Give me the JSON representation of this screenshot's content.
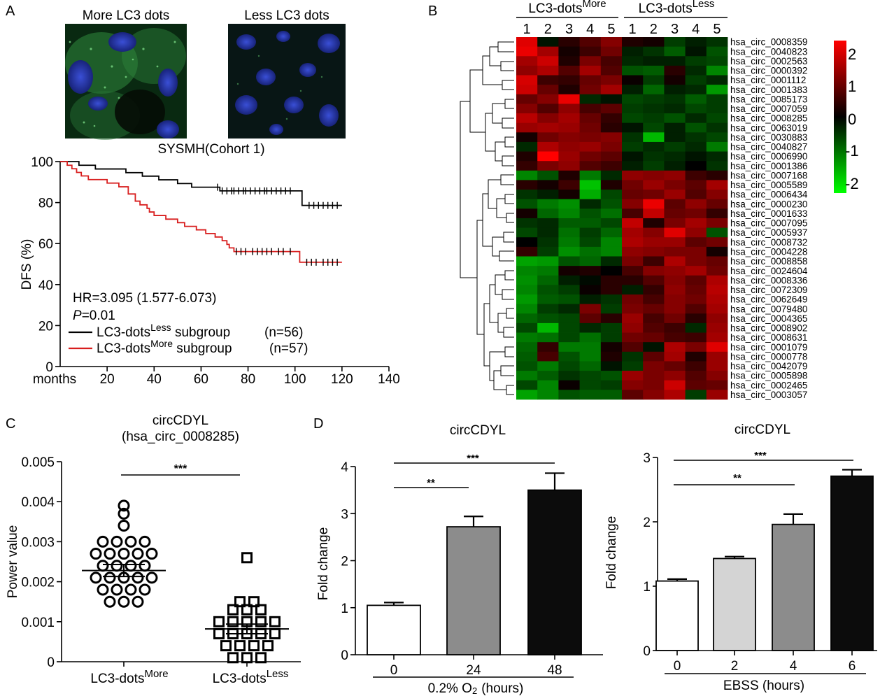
{
  "panel_labels": {
    "a": "A",
    "b": "B",
    "c": "C",
    "d": "D"
  },
  "colors": {
    "surv_less": "#000000",
    "surv_more": "#d81e1e",
    "heat_high": "#ff0000",
    "heat_mid": "#000000",
    "heat_low": "#00ff00",
    "bar_white": "#ffffff",
    "bar_lightgray": "#d4d4d4",
    "bar_gray": "#8c8c8c",
    "bar_black": "#0c0c0c"
  },
  "panel_a": {
    "img_more_label": "More LC3 dots",
    "img_less_label": "Less LC3 dots",
    "cohort_label": "SYSMH(Cohort 1)",
    "hr_text": "HR=3.095 (1.577-6.073)",
    "p_label": "P",
    "p_value": "=0.01",
    "legend": [
      {
        "prefix": "LC3-dots",
        "sup": "Less",
        "suffix": " subgroup",
        "n": "(n=56)",
        "color_key": "surv_less"
      },
      {
        "prefix": "LC3-dots",
        "sup": "More",
        "suffix": " subgroup",
        "n": "(n=57)",
        "color_key": "surv_more"
      }
    ]
  },
  "panel_b": {
    "group_more": {
      "prefix": "LC3-dots",
      "sup": "More"
    },
    "group_less": {
      "prefix": "LC3-dots",
      "sup": "Less"
    },
    "colorbar_ticks": [
      "2",
      "1",
      "0",
      "-1",
      "-2"
    ]
  },
  "panel_c": {
    "title_line1": "circCDYL",
    "title_line2": "(hsa_circ_0008285)",
    "significance": "***",
    "cat_more": {
      "prefix": "LC3-dots",
      "sup": "More"
    },
    "cat_less": {
      "prefix": "LC3-dots",
      "sup": "Less"
    }
  },
  "panel_d": {
    "left_sig_short": "**",
    "left_sig_long": "***",
    "left_xlabel_prefix": "0.2% O",
    "left_xlabel_sub": "2",
    "left_xlabel_suffix": "(hours)",
    "right_sig_short": "**",
    "right_sig_long": "***"
  },
  "chart_data": [
    {
      "id": "survival",
      "type": "line",
      "title": "SYSMH(Cohort 1)",
      "xlabel": "months",
      "ylabel": "DFS (%)",
      "xlim": [
        0,
        140
      ],
      "ylim": [
        0,
        100
      ],
      "xticks": [
        "20",
        "40",
        "60",
        "80",
        "100",
        "120",
        "140"
      ],
      "yticks": [
        "0",
        "20",
        "40",
        "60",
        "80",
        "100"
      ],
      "series": [
        {
          "name": "LC3-dots Less subgroup (n=56)",
          "color_key": "surv_less",
          "steps": [
            [
              0,
              100
            ],
            [
              8,
              98.2
            ],
            [
              15,
              96.4
            ],
            [
              28,
              94.6
            ],
            [
              35,
              92.9
            ],
            [
              42,
              91.1
            ],
            [
              50,
              89.3
            ],
            [
              56,
              87.5
            ],
            [
              68,
              85.7
            ],
            [
              100,
              85.7
            ],
            [
              103,
              78.6
            ],
            [
              120,
              78.6
            ]
          ],
          "censor_x": [
            67,
            69,
            71,
            73,
            74,
            76,
            78,
            79,
            81,
            83,
            85,
            87,
            88,
            90,
            92,
            94,
            96,
            98,
            106,
            108,
            110,
            112,
            114,
            116,
            118
          ]
        },
        {
          "name": "LC3-dots More subgroup (n=57)",
          "color_key": "surv_more",
          "steps": [
            [
              0,
              100
            ],
            [
              3,
              98.2
            ],
            [
              5,
              96.5
            ],
            [
              7,
              94.7
            ],
            [
              9,
              93
            ],
            [
              12,
              91.2
            ],
            [
              20,
              89.5
            ],
            [
              25,
              87.7
            ],
            [
              29,
              84.2
            ],
            [
              32,
              80.7
            ],
            [
              34,
              78.9
            ],
            [
              37,
              77.2
            ],
            [
              38,
              75.4
            ],
            [
              40,
              73.7
            ],
            [
              45,
              71.9
            ],
            [
              50,
              70.2
            ],
            [
              53,
              68.4
            ],
            [
              58,
              66.7
            ],
            [
              62,
              64.9
            ],
            [
              66,
              63.2
            ],
            [
              69,
              61.4
            ],
            [
              71,
              59.6
            ],
            [
              72,
              57.9
            ],
            [
              74,
              56.1
            ],
            [
              100,
              56.1
            ],
            [
              102,
              50.9
            ],
            [
              120,
              50.9
            ]
          ],
          "censor_x": [
            75,
            77,
            79,
            82,
            84,
            86,
            88,
            90,
            93,
            95,
            98,
            105,
            107,
            109,
            112,
            114,
            116,
            118
          ]
        }
      ]
    },
    {
      "id": "heatmap",
      "type": "heatmap",
      "columns": [
        "1",
        "2",
        "3",
        "4",
        "5",
        "1",
        "2",
        "3",
        "4",
        "5"
      ],
      "rows": [
        "hsa_circ_0008359",
        "hsa_circ_0040823",
        "hsa_circ_0002563",
        "hsa_circ_0000392",
        "hsa_circ_0001112",
        "hsa_circ_0001383",
        "hsa_circ_0085173",
        "hsa_circ_0007059",
        "hsa_circ_0008285",
        "hsa_circ_0063019",
        "hsa_circ_0030883",
        "hsa_circ_0040827",
        "hsa_circ_0006990",
        "hsa_circ_0001386",
        "hsa_circ_0007168",
        "hsa_circ_0005589",
        "hsa_circ_0006434",
        "hsa_circ_0000230",
        "hsa_circ_0001633",
        "hsa_circ_0007095",
        "hsa_circ_0005937",
        "hsa_circ_0008732",
        "hsa_circ_0004228",
        "hsa_circ_0008858",
        "hsa_circ_0024604",
        "hsa_circ_0008336",
        "hsa_circ_0072309",
        "hsa_circ_0062649",
        "hsa_circ_0079480",
        "hsa_circ_0004365",
        "hsa_circ_0008902",
        "hsa_circ_0008631",
        "hsa_circ_0001079",
        "hsa_circ_0000778",
        "hsa_circ_0042079",
        "hsa_circ_0005898",
        "hsa_circ_0002465",
        "hsa_circ_0003057"
      ],
      "values": [
        [
          2.2,
          -0.2,
          0.4,
          0.8,
          1.3,
          0.3,
          0.2,
          -0.6,
          -0.3,
          -0.5
        ],
        [
          2.3,
          1.6,
          0.2,
          0.6,
          1.1,
          -0.3,
          -0.5,
          -0.9,
          -0.2,
          -0.8
        ],
        [
          1.6,
          2.0,
          0.3,
          1.2,
          0.7,
          -0.4,
          -0.3,
          -0.3,
          -0.6,
          -0.7
        ],
        [
          1.4,
          1.7,
          0.8,
          1.6,
          0.8,
          -0.8,
          -0.9,
          0.4,
          -0.4,
          -1.3
        ],
        [
          2.1,
          0.6,
          0.5,
          1.0,
          1.2,
          0.1,
          -0.6,
          0.2,
          -0.6,
          -0.4
        ],
        [
          2.0,
          1.0,
          0.3,
          1.1,
          1.6,
          -0.3,
          -1.0,
          -0.3,
          -0.4,
          -1.5
        ],
        [
          1.0,
          1.3,
          2.3,
          -0.4,
          -0.2,
          -0.7,
          -0.6,
          -0.5,
          -0.9,
          -0.6
        ],
        [
          1.3,
          0.8,
          1.4,
          0.7,
          0.9,
          -0.6,
          -0.5,
          -0.4,
          -0.7,
          -0.6
        ],
        [
          1.8,
          1.3,
          1.6,
          1.0,
          0.5,
          -0.7,
          -0.6,
          -0.8,
          -0.4,
          -0.7
        ],
        [
          1.5,
          1.6,
          1.5,
          1.1,
          0.4,
          -0.2,
          -0.7,
          -0.3,
          -0.8,
          -0.5
        ],
        [
          0.2,
          1.1,
          1.3,
          1.2,
          1.3,
          -0.5,
          -1.8,
          -0.3,
          -0.5,
          -0.7
        ],
        [
          -0.4,
          1.7,
          1.4,
          1.5,
          1.2,
          -0.6,
          -0.4,
          -0.6,
          -0.4,
          -1.2
        ],
        [
          0.3,
          2.5,
          1.5,
          1.1,
          0.9,
          -0.2,
          -0.5,
          -0.4,
          -0.2,
          -0.4
        ],
        [
          0.5,
          1.2,
          1.4,
          0.8,
          0.6,
          -0.3,
          -0.6,
          -0.3,
          0.0,
          -0.5
        ],
        [
          -1.3,
          -0.8,
          0.3,
          -1.2,
          -0.4,
          1.4,
          1.3,
          1.4,
          0.6,
          0.4
        ],
        [
          0.4,
          0.2,
          0.6,
          -1.9,
          0.3,
          1.1,
          1.5,
          1.2,
          0.9,
          1.6
        ],
        [
          -0.5,
          -0.3,
          0.2,
          -1.7,
          -0.7,
          1.0,
          1.1,
          1.5,
          0.8,
          1.3
        ],
        [
          -0.8,
          -1.2,
          -1.4,
          -0.4,
          -0.8,
          1.3,
          2.3,
          0.9,
          1.4,
          1.0
        ],
        [
          0.2,
          -1.0,
          -1.3,
          -0.8,
          -1.1,
          0.7,
          1.9,
          1.0,
          1.1,
          0.5
        ],
        [
          -0.5,
          -0.4,
          -0.9,
          -0.9,
          -0.7,
          1.9,
          0.3,
          1.2,
          1.6,
          1.2
        ],
        [
          -0.7,
          -0.4,
          -1.1,
          -0.6,
          -1.0,
          1.6,
          1.3,
          2.2,
          1.4,
          -0.8
        ],
        [
          0.0,
          -0.5,
          -1.2,
          -0.7,
          -1.3,
          1.7,
          1.5,
          1.5,
          0.9,
          1.1
        ],
        [
          0.5,
          -0.6,
          -1.4,
          -1.1,
          -1.3,
          1.4,
          1.3,
          1.2,
          1.2,
          0.2
        ],
        [
          -1.6,
          -1.5,
          -0.8,
          -1.0,
          -0.4,
          1.2,
          0.6,
          1.7,
          1.2,
          1.0
        ],
        [
          -1.3,
          -1.2,
          0.2,
          0.3,
          0.0,
          0.7,
          1.3,
          1.4,
          1.6,
          1.1
        ],
        [
          -1.4,
          -1.0,
          -0.3,
          -0.1,
          0.4,
          0.4,
          0.8,
          1.3,
          0.9,
          1.7
        ],
        [
          -1.3,
          -0.8,
          -0.6,
          0.1,
          0.4,
          -0.3,
          0.5,
          1.4,
          1.0,
          1.8
        ],
        [
          -1.5,
          -0.9,
          -0.8,
          -0.3,
          -0.5,
          1.1,
          0.7,
          1.3,
          1.1,
          1.7
        ],
        [
          -1.3,
          -0.6,
          -0.4,
          1.2,
          -0.6,
          1.2,
          1.0,
          1.3,
          0.8,
          1.6
        ],
        [
          -1.0,
          -0.8,
          -0.7,
          0.9,
          0.4,
          1.5,
          0.7,
          1.1,
          0.4,
          1.4
        ],
        [
          -0.7,
          -1.8,
          -0.7,
          -0.4,
          -0.6,
          1.4,
          0.8,
          0.6,
          -0.4,
          1.5
        ],
        [
          -1.2,
          -1.1,
          -0.7,
          -1.1,
          -0.6,
          1.1,
          1.0,
          0.7,
          0.6,
          1.6
        ],
        [
          -1.0,
          0.5,
          -1.2,
          -1.2,
          0.2,
          0.8,
          -0.2,
          1.7,
          1.2,
          2.2
        ],
        [
          -0.9,
          0.7,
          -0.8,
          -1.2,
          0.3,
          -0.5,
          0.9,
          1.6,
          0.3,
          1.5
        ],
        [
          -0.8,
          -1.2,
          -0.7,
          -1.0,
          -0.2,
          -0.6,
          1.2,
          1.0,
          0.6,
          1.5
        ],
        [
          -1.2,
          -0.9,
          -0.5,
          -0.7,
          -0.8,
          1.5,
          1.2,
          1.4,
          0.8,
          1.3
        ],
        [
          -0.7,
          -1.3,
          0.1,
          -0.7,
          -0.6,
          1.3,
          1.2,
          2.0,
          0.9,
          1.0
        ],
        [
          -1.6,
          -1.3,
          -0.8,
          -0.9,
          -0.9,
          0.9,
          1.3,
          1.7,
          -0.6,
          1.5
        ]
      ],
      "range": [
        -2.5,
        2.5
      ]
    },
    {
      "id": "scatter",
      "type": "scatter",
      "ylabel": "Power value",
      "ylim": [
        0,
        0.005
      ],
      "yticks": [
        "0",
        "0.001",
        "0.002",
        "0.003",
        "0.004",
        "0.005"
      ],
      "categories": [
        "LC3-dotsMore",
        "LC3-dotsLess"
      ],
      "mean": [
        0.00228,
        0.00082
      ],
      "sem": [
        0.00015,
        0.00012
      ],
      "points": [
        {
          "group": 0,
          "dx": 0,
          "y": 0.0039
        },
        {
          "group": 0,
          "dx": 0,
          "y": 0.0034
        },
        {
          "group": 0,
          "dx": 0,
          "y": 0.0037
        },
        {
          "group": 0,
          "dx": -1.5,
          "y": 0.003
        },
        {
          "group": 0,
          "dx": -0.5,
          "y": 0.003
        },
        {
          "group": 0,
          "dx": 0.5,
          "y": 0.003
        },
        {
          "group": 0,
          "dx": 1.5,
          "y": 0.003
        },
        {
          "group": 0,
          "dx": -2,
          "y": 0.0027
        },
        {
          "group": 0,
          "dx": -1,
          "y": 0.0027
        },
        {
          "group": 0,
          "dx": 0,
          "y": 0.0027
        },
        {
          "group": 0,
          "dx": 1,
          "y": 0.0027
        },
        {
          "group": 0,
          "dx": 2,
          "y": 0.0027
        },
        {
          "group": 0,
          "dx": -1.5,
          "y": 0.0024
        },
        {
          "group": 0,
          "dx": -0.5,
          "y": 0.0024
        },
        {
          "group": 0,
          "dx": 0.5,
          "y": 0.0024
        },
        {
          "group": 0,
          "dx": 1.5,
          "y": 0.0024
        },
        {
          "group": 0,
          "dx": -2,
          "y": 0.0021
        },
        {
          "group": 0,
          "dx": -1,
          "y": 0.0021
        },
        {
          "group": 0,
          "dx": 0,
          "y": 0.0021
        },
        {
          "group": 0,
          "dx": 1,
          "y": 0.0021
        },
        {
          "group": 0,
          "dx": 2,
          "y": 0.0021
        },
        {
          "group": 0,
          "dx": -1.5,
          "y": 0.0018
        },
        {
          "group": 0,
          "dx": -0.5,
          "y": 0.0018
        },
        {
          "group": 0,
          "dx": 0.5,
          "y": 0.0018
        },
        {
          "group": 0,
          "dx": 1.5,
          "y": 0.0018
        },
        {
          "group": 0,
          "dx": -1,
          "y": 0.0015
        },
        {
          "group": 0,
          "dx": 0,
          "y": 0.0015
        },
        {
          "group": 0,
          "dx": 1,
          "y": 0.0015
        },
        {
          "group": 1,
          "dx": 0,
          "y": 0.0026
        },
        {
          "group": 1,
          "dx": -0.5,
          "y": 0.0015
        },
        {
          "group": 1,
          "dx": 0.5,
          "y": 0.0015
        },
        {
          "group": 1,
          "dx": -1,
          "y": 0.0013
        },
        {
          "group": 1,
          "dx": 0,
          "y": 0.0013
        },
        {
          "group": 1,
          "dx": 1,
          "y": 0.0013
        },
        {
          "group": 1,
          "dx": -2,
          "y": 0.001
        },
        {
          "group": 1,
          "dx": -1,
          "y": 0.001
        },
        {
          "group": 1,
          "dx": 0,
          "y": 0.001
        },
        {
          "group": 1,
          "dx": 1,
          "y": 0.001
        },
        {
          "group": 1,
          "dx": 2,
          "y": 0.001
        },
        {
          "group": 1,
          "dx": -2,
          "y": 0.0007
        },
        {
          "group": 1,
          "dx": -1,
          "y": 0.0007
        },
        {
          "group": 1,
          "dx": 0,
          "y": 0.0007
        },
        {
          "group": 1,
          "dx": 1,
          "y": 0.0007
        },
        {
          "group": 1,
          "dx": 2,
          "y": 0.0007
        },
        {
          "group": 1,
          "dx": -1.5,
          "y": 0.0004
        },
        {
          "group": 1,
          "dx": -0.5,
          "y": 0.0004
        },
        {
          "group": 1,
          "dx": 0.5,
          "y": 0.0004
        },
        {
          "group": 1,
          "dx": 1.5,
          "y": 0.0004
        },
        {
          "group": 1,
          "dx": -1,
          "y": 0.0001
        },
        {
          "group": 1,
          "dx": 0,
          "y": 0.0001
        },
        {
          "group": 1,
          "dx": 1,
          "y": 0.0001
        }
      ]
    },
    {
      "id": "bar_hypoxia",
      "type": "bar",
      "title": "circCDYL",
      "ylabel": "Fold change",
      "xlabel": "0.2% O2 (hours)",
      "ylim": [
        0,
        4
      ],
      "yticks": [
        "0",
        "1",
        "2",
        "3",
        "4"
      ],
      "categories": [
        "0",
        "24",
        "48"
      ],
      "values": [
        1.05,
        2.72,
        3.5
      ],
      "errors": [
        0.06,
        0.22,
        0.36
      ],
      "fill_keys": [
        "bar_white",
        "bar_gray",
        "bar_black"
      ]
    },
    {
      "id": "bar_ebss",
      "type": "bar",
      "title": "circCDYL",
      "ylabel": "Fold change",
      "xlabel": "EBSS (hours)",
      "ylim": [
        0,
        3
      ],
      "yticks": [
        "0",
        "1",
        "2",
        "3"
      ],
      "categories": [
        "0",
        "2",
        "4",
        "6"
      ],
      "values": [
        1.08,
        1.43,
        1.96,
        2.71
      ],
      "errors": [
        0.03,
        0.03,
        0.16,
        0.1
      ],
      "fill_keys": [
        "bar_white",
        "bar_lightgray",
        "bar_gray",
        "bar_black"
      ]
    }
  ]
}
